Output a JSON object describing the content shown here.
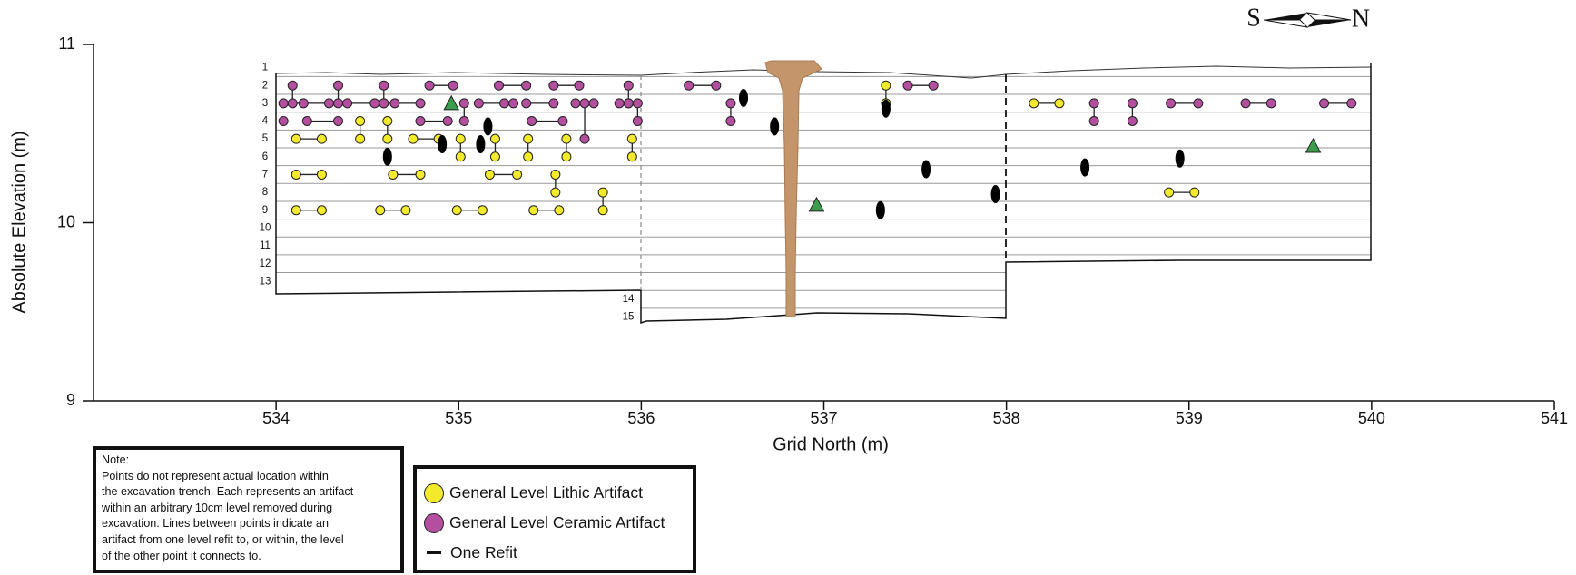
{
  "chart_data": {
    "type": "profile",
    "xlabel": "Grid North (m)",
    "ylabel": "Absolute Elevation (m)",
    "xlim": [
      533,
      541
    ],
    "xticks": [
      534,
      535,
      536,
      537,
      538,
      539,
      540,
      541
    ],
    "ylim": [
      9,
      11
    ],
    "yticks": [
      9,
      10,
      11
    ],
    "levels": [
      "1",
      "2",
      "3",
      "4",
      "5",
      "6",
      "7",
      "8",
      "9",
      "10",
      "11",
      "12",
      "13",
      "14",
      "15"
    ],
    "compass": [
      "S",
      "N"
    ],
    "refit_label": "One Refit",
    "series": [
      {
        "name": "General Level Lithic Artifact",
        "color": "#f2ea2a",
        "groups": [
          {
            "x": [
              534.11,
              534.25
            ],
            "values": [
              10.47,
              10.47
            ]
          },
          {
            "x": [
              534.46,
              534.46
            ],
            "values": [
              10.57,
              10.47
            ]
          },
          {
            "x": [
              534.61,
              534.61
            ],
            "values": [
              10.57,
              10.47
            ]
          },
          {
            "x": [
              534.75,
              534.89
            ],
            "values": [
              10.47,
              10.47
            ]
          },
          {
            "x": [
              535.01,
              535.01
            ],
            "values": [
              10.47,
              10.37
            ]
          },
          {
            "x": [
              535.2,
              535.2
            ],
            "values": [
              10.47,
              10.37
            ]
          },
          {
            "x": [
              535.38,
              535.38
            ],
            "values": [
              10.47,
              10.37
            ]
          },
          {
            "x": [
              535.59,
              535.59
            ],
            "values": [
              10.47,
              10.37
            ]
          },
          {
            "x": [
              535.95,
              535.95
            ],
            "values": [
              10.47,
              10.37
            ]
          },
          {
            "x": [
              534.11,
              534.25
            ],
            "values": [
              10.27,
              10.27
            ]
          },
          {
            "x": [
              534.64,
              534.79
            ],
            "values": [
              10.27,
              10.27
            ]
          },
          {
            "x": [
              535.17,
              535.32
            ],
            "values": [
              10.27,
              10.27
            ]
          },
          {
            "x": [
              535.53,
              535.53
            ],
            "values": [
              10.27,
              10.17
            ]
          },
          {
            "x": [
              534.11,
              534.25
            ],
            "values": [
              10.07,
              10.07
            ]
          },
          {
            "x": [
              534.57,
              534.71
            ],
            "values": [
              10.07,
              10.07
            ]
          },
          {
            "x": [
              534.99,
              535.13
            ],
            "values": [
              10.07,
              10.07
            ]
          },
          {
            "x": [
              535.41,
              535.55
            ],
            "values": [
              10.07,
              10.07
            ]
          },
          {
            "x": [
              535.79,
              535.79
            ],
            "values": [
              10.17,
              10.07
            ]
          },
          {
            "x": [
              537.34,
              537.34
            ],
            "values": [
              10.77,
              10.67
            ]
          },
          {
            "x": [
              538.15,
              538.29
            ],
            "values": [
              10.67,
              10.67
            ]
          },
          {
            "x": [
              538.89,
              539.03
            ],
            "values": [
              10.17,
              10.17
            ]
          }
        ]
      },
      {
        "name": "General Level Ceramic Artifact",
        "color": "#b44f9f",
        "groups": [
          {
            "x": [
              534.09,
              534.09
            ],
            "values": [
              10.77,
              10.67
            ]
          },
          {
            "x": [
              534.04,
              534.15,
              534.29
            ],
            "values": [
              10.67,
              10.67,
              10.67
            ]
          },
          {
            "x": [
              534.34,
              534.34
            ],
            "values": [
              10.77,
              10.67
            ]
          },
          {
            "x": [
              534.39,
              534.54
            ],
            "values": [
              10.67,
              10.67
            ]
          },
          {
            "x": [
              534.59,
              534.59
            ],
            "values": [
              10.77,
              10.67
            ]
          },
          {
            "x": [
              534.59,
              534.65,
              534.79
            ],
            "values": [
              10.67,
              10.67,
              10.67
            ]
          },
          {
            "x": [
              534.84,
              534.97
            ],
            "values": [
              10.77,
              10.77
            ]
          },
          {
            "x": [
              535.03,
              535.03
            ],
            "values": [
              10.67,
              10.57
            ]
          },
          {
            "x": [
              535.11,
              535.25,
              535.3
            ],
            "values": [
              10.67,
              10.67,
              10.67
            ]
          },
          {
            "x": [
              535.37,
              535.52
            ],
            "values": [
              10.67,
              10.67
            ]
          },
          {
            "x": [
              535.22,
              535.37
            ],
            "values": [
              10.77,
              10.77
            ]
          },
          {
            "x": [
              535.52,
              535.66
            ],
            "values": [
              10.77,
              10.77
            ]
          },
          {
            "x": [
              535.64,
              535.69,
              535.69
            ],
            "values": [
              10.67,
              10.67,
              10.47
            ]
          },
          {
            "x": [
              535.74
            ],
            "values": [
              10.67
            ]
          },
          {
            "x": [
              535.93,
              535.93
            ],
            "values": [
              10.77,
              10.67
            ]
          },
          {
            "x": [
              535.88,
              535.93,
              535.98,
              535.98
            ],
            "values": [
              10.67,
              10.67,
              10.67,
              10.57
            ]
          },
          {
            "x": [
              534.04
            ],
            "values": [
              10.57
            ]
          },
          {
            "x": [
              534.17,
              534.34
            ],
            "values": [
              10.57,
              10.57
            ]
          },
          {
            "x": [
              534.79,
              534.94
            ],
            "values": [
              10.57,
              10.57
            ]
          },
          {
            "x": [
              535.4,
              535.57
            ],
            "values": [
              10.57,
              10.57
            ]
          },
          {
            "x": [
              536.26,
              536.41
            ],
            "values": [
              10.77,
              10.77
            ]
          },
          {
            "x": [
              536.49,
              536.49
            ],
            "values": [
              10.67,
              10.57
            ]
          },
          {
            "x": [
              537.46,
              537.6
            ],
            "values": [
              10.77,
              10.77
            ]
          },
          {
            "x": [
              538.48,
              538.48
            ],
            "values": [
              10.67,
              10.57
            ]
          },
          {
            "x": [
              538.69,
              538.69
            ],
            "values": [
              10.67,
              10.57
            ]
          },
          {
            "x": [
              538.9,
              539.05
            ],
            "values": [
              10.67,
              10.67
            ]
          },
          {
            "x": [
              539.31,
              539.45
            ],
            "values": [
              10.67,
              10.67
            ]
          },
          {
            "x": [
              539.74,
              539.89
            ],
            "values": [
              10.67,
              10.67
            ]
          }
        ]
      }
    ],
    "triangles": {
      "color": "#3c9e4c",
      "x": [
        534.96,
        536.96,
        539.68
      ],
      "values": [
        10.67,
        10.1,
        10.43
      ]
    },
    "points": {
      "color": "#000000",
      "x": [
        534.61,
        534.91,
        535.12,
        535.16,
        536.56,
        536.73,
        537.34,
        537.56,
        537.94,
        538.43,
        538.95,
        537.31
      ],
      "values": [
        10.37,
        10.44,
        10.44,
        10.54,
        10.7,
        10.54,
        10.64,
        10.3,
        10.16,
        10.31,
        10.36,
        10.07
      ]
    }
  },
  "note": {
    "title": "Note:",
    "lines": [
      "Points do not represent actual location within",
      "the excavation trench. Each represents an artifact",
      "within an arbitrary 10cm level removed during",
      "excavation. Lines between points indicate an",
      "artifact from one level refit to, or within, the level",
      "of the other point it connects to."
    ]
  }
}
